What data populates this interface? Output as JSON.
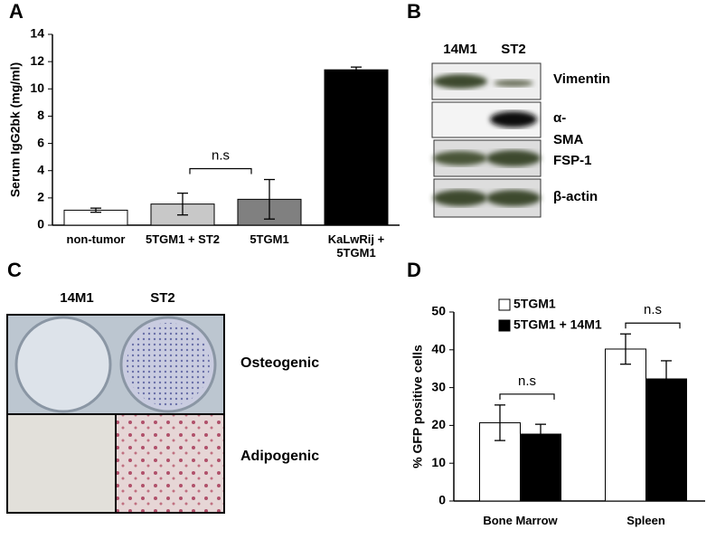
{
  "panels": {
    "letters": [
      "A",
      "B",
      "C",
      "D"
    ],
    "B": {
      "lanes": [
        "14M1",
        "ST2"
      ],
      "rows": [
        "Vimentin",
        "α-SMA",
        "FSP-1",
        "β-actin"
      ]
    },
    "C": {
      "lanes": [
        "14M1",
        "ST2"
      ],
      "rows": [
        "Osteogenic",
        "Adipogenic"
      ]
    }
  },
  "chart_data": [
    {
      "type": "bar",
      "ylabel": "Serum IgG2bk (mg/ml)",
      "categories": [
        "non-tumor",
        "5TGM1 + ST2",
        "5TGM1",
        "KaLwRij + 5TGM1"
      ],
      "values": [
        1.1,
        1.55,
        1.9,
        11.4
      ],
      "errors": [
        0.15,
        0.8,
        1.45,
        0.2
      ],
      "colors": [
        "#ffffff",
        "#c8c8c8",
        "#808080",
        "#000000"
      ],
      "ylim": [
        0,
        14
      ],
      "yticks": [
        0,
        2,
        4,
        6,
        8,
        10,
        12,
        14
      ],
      "annotations": [
        {
          "text": "n.s",
          "between": [
            1,
            2
          ]
        }
      ]
    },
    {
      "type": "grouped_bar",
      "ylabel": "% GFP positive cells",
      "categories": [
        "Bone Marrow",
        "Spleen"
      ],
      "series": [
        {
          "name": "5TGM1",
          "color": "#ffffff",
          "values": [
            20.7,
            40.2
          ],
          "errors": [
            4.7,
            4.0
          ]
        },
        {
          "name": "5TGM1 + 14M1",
          "color": "#000000",
          "values": [
            17.7,
            32.3
          ],
          "errors": [
            2.6,
            4.8
          ]
        }
      ],
      "ylim": [
        0,
        50
      ],
      "yticks": [
        0,
        10,
        20,
        30,
        40,
        50
      ],
      "legend": "upper left",
      "annotations": [
        {
          "text": "n.s",
          "category": 0
        },
        {
          "text": "n.s",
          "category": 1
        }
      ]
    }
  ]
}
